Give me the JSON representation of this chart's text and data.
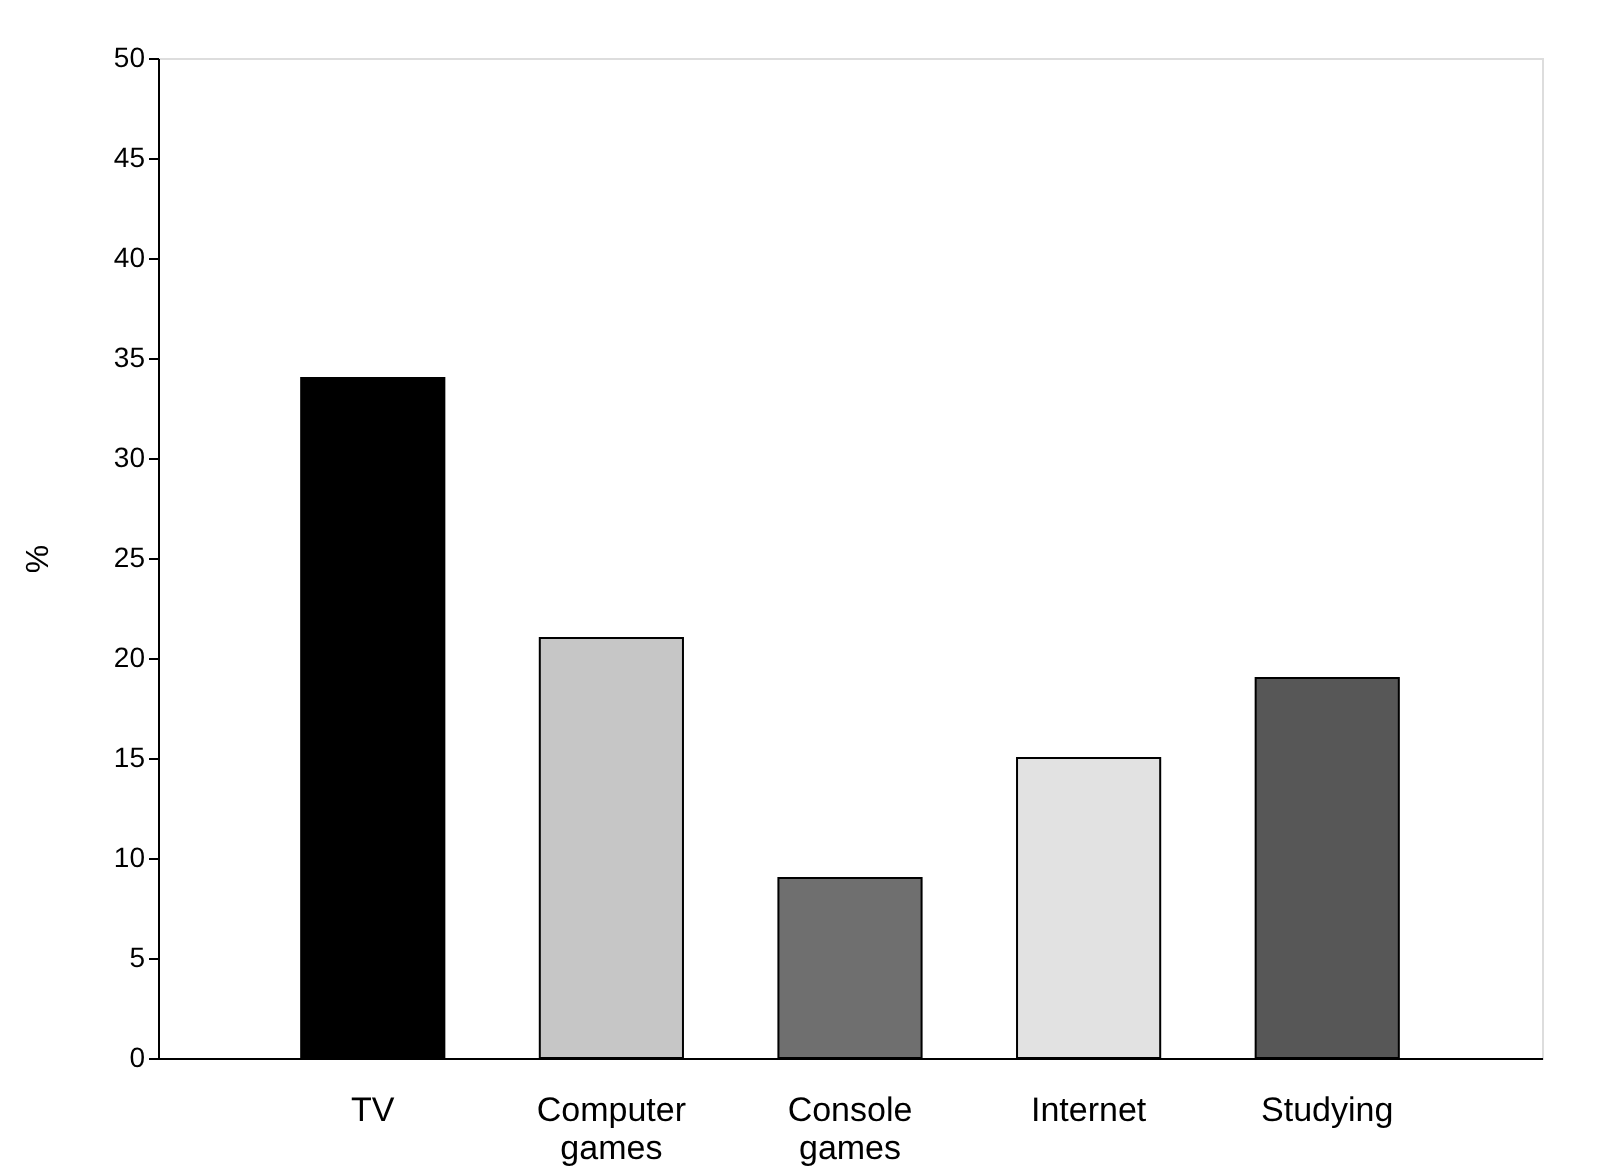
{
  "chart_data": {
    "type": "bar",
    "ylabel": "%",
    "categories": [
      "TV",
      "Computer games",
      "Console games",
      "Internet",
      "Studying"
    ],
    "values": [
      34,
      21,
      9,
      15,
      19
    ],
    "colors": [
      "#000000",
      "#c6c6c6",
      "#6f6f6f",
      "#e2e2e2",
      "#575757"
    ],
    "ylim": [
      0,
      50
    ],
    "yticks": [
      0,
      5,
      10,
      15,
      20,
      25,
      30,
      35,
      40,
      45,
      50
    ],
    "grid": false
  }
}
